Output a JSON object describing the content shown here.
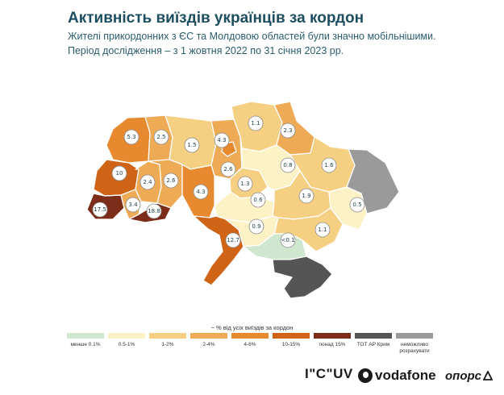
{
  "header": {
    "title": "Активність виїздів українців за кордон",
    "subtitle_1": "Жителі прикордонних з ЄС та Молдовою областей були значно мобільнішими.",
    "subtitle_2": "Період дослідження – з 1 жовтня 2022 по 31 січня 2023 рр."
  },
  "colors": {
    "lt_0_1": "#cfe6cf",
    "c0_5_1": "#fdf1c6",
    "c1_2": "#f5cf82",
    "c2_4": "#eeaa55",
    "c4_6": "#e7892f",
    "c10_15": "#cf6417",
    "over15": "#7c2c18",
    "tot": "#555555",
    "na": "#9a9a9a"
  },
  "regions": [
    {
      "name": "Волинська",
      "value": "5.3",
      "class": "4-6%"
    },
    {
      "name": "Рівненська",
      "value": "2.5",
      "class": "2-4%"
    },
    {
      "name": "Житомирська",
      "value": "1.5",
      "class": "1-2%"
    },
    {
      "name": "Київ",
      "value": "4.3",
      "class": "4-6%"
    },
    {
      "name": "Київська",
      "value": "2.6",
      "class": "2-4%"
    },
    {
      "name": "Чернігівська",
      "value": "1.1",
      "class": "1-2%"
    },
    {
      "name": "Сумська",
      "value": "2.3",
      "class": "2-4%"
    },
    {
      "name": "Львівська",
      "value": "10",
      "class": "10-15%"
    },
    {
      "name": "Тернопільська",
      "value": "2.4",
      "class": "2-4%"
    },
    {
      "name": "Хмельницька",
      "value": "2.6",
      "class": "2-4%"
    },
    {
      "name": "Вінницька",
      "value": "4.3",
      "class": "4-6%"
    },
    {
      "name": "Черкаська",
      "value": "1.3",
      "class": "1-2%"
    },
    {
      "name": "Полтавська",
      "value": "0.8",
      "class": "0.5-1%"
    },
    {
      "name": "Харківська",
      "value": "1.6",
      "class": "1-2%"
    },
    {
      "name": "Закарпатська",
      "value": "17.5",
      "class": "понад 15%"
    },
    {
      "name": "Івано-Франківська",
      "value": "3.4",
      "class": "2-4%"
    },
    {
      "name": "Чернівецька",
      "value": "18.8",
      "class": "понад 15%"
    },
    {
      "name": "Кіровоградська",
      "value": "0.6",
      "class": "0.5-1%"
    },
    {
      "name": "Дніпропетровська",
      "value": "1.9",
      "class": "1-2%"
    },
    {
      "name": "Донецька",
      "value": "0.5",
      "class": "0.5-1%"
    },
    {
      "name": "Миколаївська",
      "value": "0.9",
      "class": "0.5-1%"
    },
    {
      "name": "Запорізька",
      "value": "1.1",
      "class": "1-2%"
    },
    {
      "name": "Одеська",
      "value": "12.7",
      "class": "10-15%"
    },
    {
      "name": "Херсонська",
      "value": "<0.1",
      "class": "менше 0.1%"
    }
  ],
  "legend": {
    "title": "~ % від усіх виїздів за кордон",
    "items": [
      {
        "label": "менше 0.1%",
        "color": "#cfe6cf"
      },
      {
        "label": "0.5-1%",
        "color": "#fdf1c6"
      },
      {
        "label": "1-2%",
        "color": "#f5cf82"
      },
      {
        "label": "2-4%",
        "color": "#eeaa55"
      },
      {
        "label": "4-6%",
        "color": "#e7892f"
      },
      {
        "label": "10-15%",
        "color": "#cf6417"
      },
      {
        "label": "понад 15%",
        "color": "#7c2c18"
      },
      {
        "label": "ТОТ АР Крим",
        "color": "#555555"
      },
      {
        "label": "неможливо розрахувати",
        "color": "#9a9a9a"
      }
    ]
  },
  "logos": {
    "cuv": "I\"C\"UV",
    "vodafone": "vodafone",
    "opora": "опорс"
  }
}
